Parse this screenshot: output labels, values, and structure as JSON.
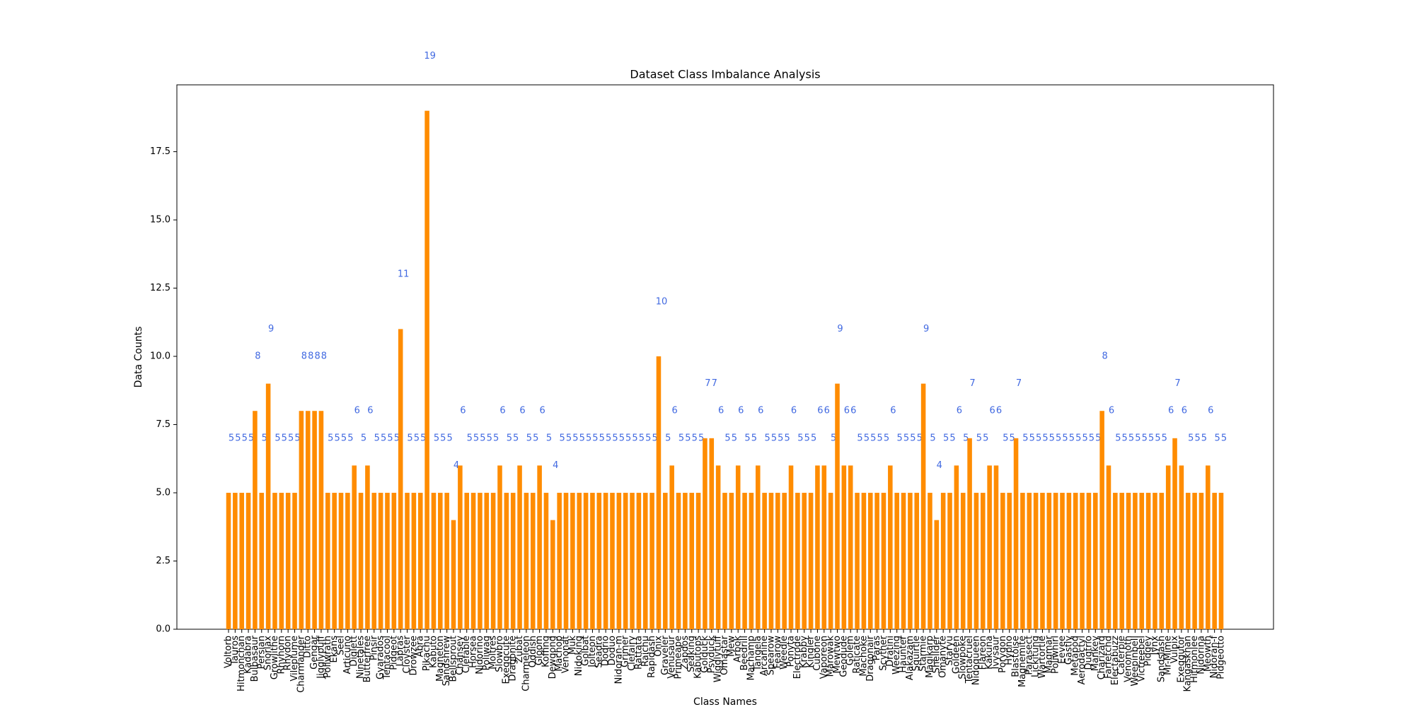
{
  "chart_data": {
    "type": "bar",
    "title": "Dataset Class Imbalance Analysis",
    "x_label": "Class Names",
    "y_label": "Data Counts",
    "categories": [
      "Voltorb",
      "Tauros",
      "Hitmonchan",
      "Kadabra",
      "Bulbasaur",
      "Persian",
      "Snorlax",
      "Growlithe",
      "Rhyhorn",
      "Rhydon",
      "Vileplume",
      "Charmander",
      "Ditto",
      "Gengar",
      "Jigglypuff",
      "Poliwrath",
      "Ekans",
      "Seel",
      "Articuno",
      "Diglett",
      "Ninetales",
      "Butterfree",
      "Pinsir",
      "Gyarados",
      "Tentacool",
      "Pidgeot",
      "Lapras",
      "Cloyster",
      "Drowzee",
      "Abra",
      "Pikachu",
      "Kabuto",
      "Magneton",
      "Sandshrew",
      "Bellsprout",
      "Chansey",
      "Clefable",
      "Horsea",
      "Nidorino",
      "Poliwag",
      "Moltres",
      "Slowbro",
      "Exeggcute",
      "Dragonite",
      "Zubat",
      "Charmeleon",
      "Oddish",
      "Gloom",
      "Koffing",
      "Dewgong",
      "Machop",
      "Venonat",
      "Muk",
      "Nidoking",
      "Golbat",
      "Jolteon",
      "Seadra",
      "Dodrio",
      "Doduo",
      "Nidoran-m",
      "Grimer",
      "Clefairy",
      "Rattata",
      "Raichu",
      "Rapidash",
      "Onix",
      "Graveler",
      "Venusaur",
      "Primeape",
      "Zapdos",
      "Seaking",
      "Kabutops",
      "Golduck",
      "Psyduck",
      "Wigglytuff",
      "Omastar",
      "Mew",
      "Arbok",
      "Beedrill",
      "Machamp",
      "Tangela",
      "Arcanine",
      "Spearow",
      "Fearow",
      "Weedle",
      "Ponyta",
      "Electrode",
      "Krabby",
      "Kingler",
      "Cubone",
      "Vaporeon",
      "Marowak",
      "Mewtwo",
      "Geodude",
      "Golem",
      "Raticate",
      "Machoke",
      "Dragonair",
      "Paras",
      "Scyther",
      "Dratini",
      "Weezing",
      "Haunter",
      "Alakazam",
      "Squirtle",
      "Starmie",
      "Magikarp",
      "Shellder",
      "Omanyte",
      "Staryu",
      "Goldeen",
      "Slowpoke",
      "Tentacruel",
      "Nidoqueen",
      "Flareon",
      "Kakuna",
      "Ivysaur",
      "Porygon",
      "Hypno",
      "Blastoise",
      "Magnemite",
      "Parasect",
      "Lickitung",
      "Wartortle",
      "Magmar",
      "Poliwhirl",
      "Eevee",
      "Gastly",
      "Metapod",
      "Aerodactyl",
      "Dugtrio",
      "Mankey",
      "Charizard",
      "Farfetchd",
      "Electabuzz",
      "Caterpie",
      "Venomoth",
      "Weepinbell",
      "Victreebel",
      "Pidgey",
      "Jynx",
      "Sandslash",
      "Mr-Mime",
      "Vulpix",
      "Exeggutor",
      "Kangaskhan",
      "Hitmonlee",
      "Nidorina",
      "Meowth",
      "Nidoran-f",
      "Pidgeotto"
    ],
    "values": [
      5,
      5,
      5,
      5,
      8,
      5,
      9,
      5,
      5,
      5,
      5,
      8,
      8,
      8,
      8,
      5,
      5,
      5,
      5,
      6,
      5,
      6,
      5,
      5,
      5,
      5,
      11,
      5,
      5,
      5,
      19,
      5,
      5,
      5,
      4,
      6,
      5,
      5,
      5,
      5,
      5,
      6,
      5,
      5,
      6,
      5,
      5,
      6,
      5,
      4,
      5,
      5,
      5,
      5,
      5,
      5,
      5,
      5,
      5,
      5,
      5,
      5,
      5,
      5,
      5,
      10,
      5,
      6,
      5,
      5,
      5,
      5,
      7,
      7,
      6,
      5,
      5,
      6,
      5,
      5,
      6,
      5,
      5,
      5,
      5,
      6,
      5,
      5,
      5,
      6,
      6,
      5,
      9,
      6,
      6,
      5,
      5,
      5,
      5,
      5,
      6,
      5,
      5,
      5,
      5,
      9,
      5,
      4,
      5,
      5,
      6,
      5,
      7,
      5,
      5,
      6,
      6,
      5,
      5,
      7,
      5,
      5,
      5,
      5,
      5,
      5,
      5,
      5,
      5,
      5,
      5,
      5,
      8,
      6,
      5,
      5,
      5,
      5,
      5,
      5,
      5,
      5,
      6,
      7,
      6,
      5,
      5,
      5,
      6,
      5,
      5
    ],
    "color": "#ff8c00",
    "label_color": "#4169e1",
    "ylim": [
      0,
      19.95
    ],
    "yticks": [
      {
        "value": 0,
        "label": "0.0"
      },
      2.5,
      {
        "value": 5,
        "label": "5.0"
      },
      7.5,
      {
        "value": 10,
        "label": "10.0"
      },
      12.5,
      {
        "value": 15,
        "label": "15.0"
      },
      17.5
    ],
    "grid": false
  }
}
